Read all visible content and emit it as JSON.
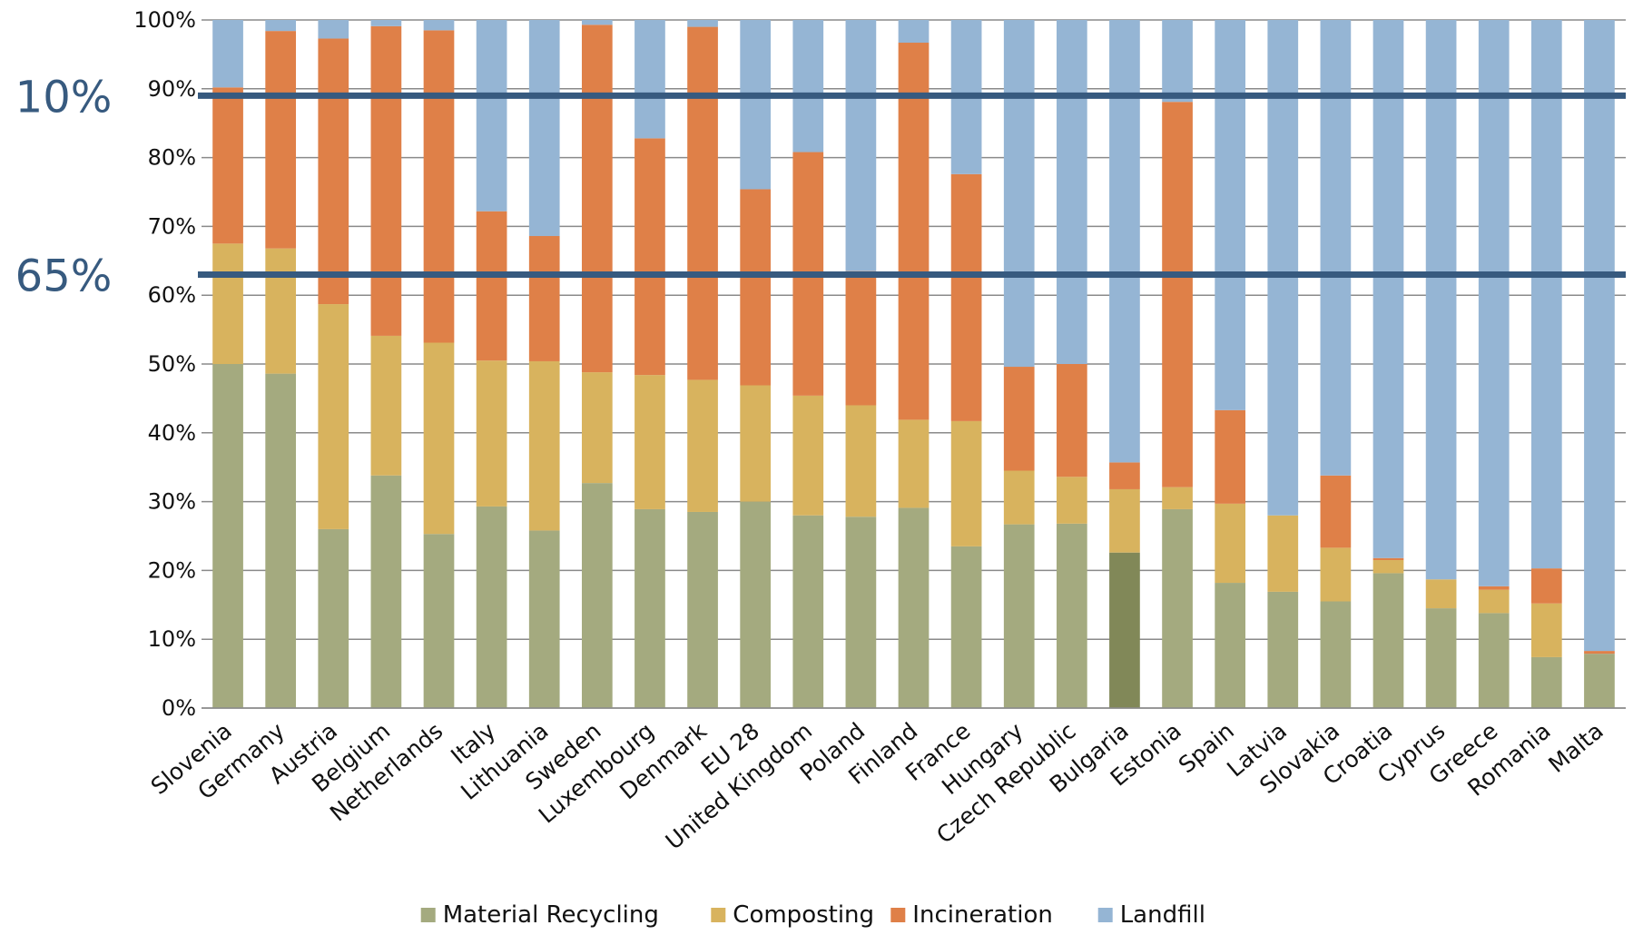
{
  "chart_data": {
    "type": "bar",
    "stacked": true,
    "percent_axis": true,
    "ylim": [
      0,
      100
    ],
    "yticks": [
      "0%",
      "10%",
      "20%",
      "30%",
      "40%",
      "50%",
      "60%",
      "70%",
      "80%",
      "90%",
      "100%"
    ],
    "grid": true,
    "legend_position": "bottom-center",
    "categories": [
      "Slovenia",
      "Germany",
      "Austria",
      "Belgium",
      "Netherlands",
      "Italy",
      "Lithuania",
      "Sweden",
      "Luxembourg",
      "Denmark",
      "EU 28",
      "United Kingdom",
      "Poland",
      "Finland",
      "France",
      "Hungary",
      "Czech Republic",
      "Bulgaria",
      "Estonia",
      "Spain",
      "Latvia",
      "Slovakia",
      "Croatia",
      "Cyprus",
      "Greece",
      "Romania",
      "Malta"
    ],
    "series": [
      {
        "name": "Material Recycling",
        "color": "#a4aa7f",
        "values": [
          50,
          48.6,
          26,
          33.8,
          25.3,
          29.3,
          25.8,
          32.7,
          28.9,
          28.5,
          30,
          28,
          27.8,
          29.1,
          23.5,
          26.7,
          26.8,
          22.6,
          28.9,
          18.2,
          16.9,
          15.5,
          19.6,
          14.5,
          13.8,
          7.4,
          7.9
        ]
      },
      {
        "name": "Composting",
        "color": "#d8b35e",
        "values": [
          17.5,
          18.2,
          32.7,
          20.3,
          27.8,
          21.2,
          24.6,
          16.1,
          19.5,
          19.2,
          16.9,
          17.4,
          16.2,
          12.8,
          18.2,
          7.8,
          6.8,
          9.2,
          3.2,
          11.5,
          11.1,
          7.8,
          1.9,
          4.2,
          3.4,
          7.8,
          0
        ]
      },
      {
        "name": "Incineration",
        "color": "#df8048",
        "values": [
          22.7,
          31.6,
          38.6,
          45,
          45.4,
          21.7,
          18.2,
          50.5,
          34.4,
          51.3,
          28.5,
          35.4,
          19.5,
          54.8,
          35.9,
          15.1,
          16.4,
          3.9,
          56,
          13.6,
          0,
          10.5,
          0.3,
          0,
          0.5,
          5.1,
          0.4
        ]
      },
      {
        "name": "Landfill",
        "color": "#95b5d4",
        "values": [
          9.8,
          1.6,
          2.7,
          0.9,
          1.5,
          27.8,
          31.4,
          0.7,
          17.2,
          1,
          24.6,
          19.2,
          36.5,
          3.3,
          22.4,
          50.4,
          50,
          64.3,
          11.9,
          56.7,
          72,
          66.2,
          78.2,
          81.3,
          82.3,
          79.7,
          91.7
        ]
      }
    ],
    "highlighted_bar": {
      "category": "Bulgaria",
      "series": "Material Recycling",
      "color": "#818858"
    },
    "reference_lines": [
      {
        "value": 89,
        "label": "10%",
        "color": "#375a7f"
      },
      {
        "value": 63,
        "label": "65%",
        "color": "#375a7f"
      }
    ]
  }
}
